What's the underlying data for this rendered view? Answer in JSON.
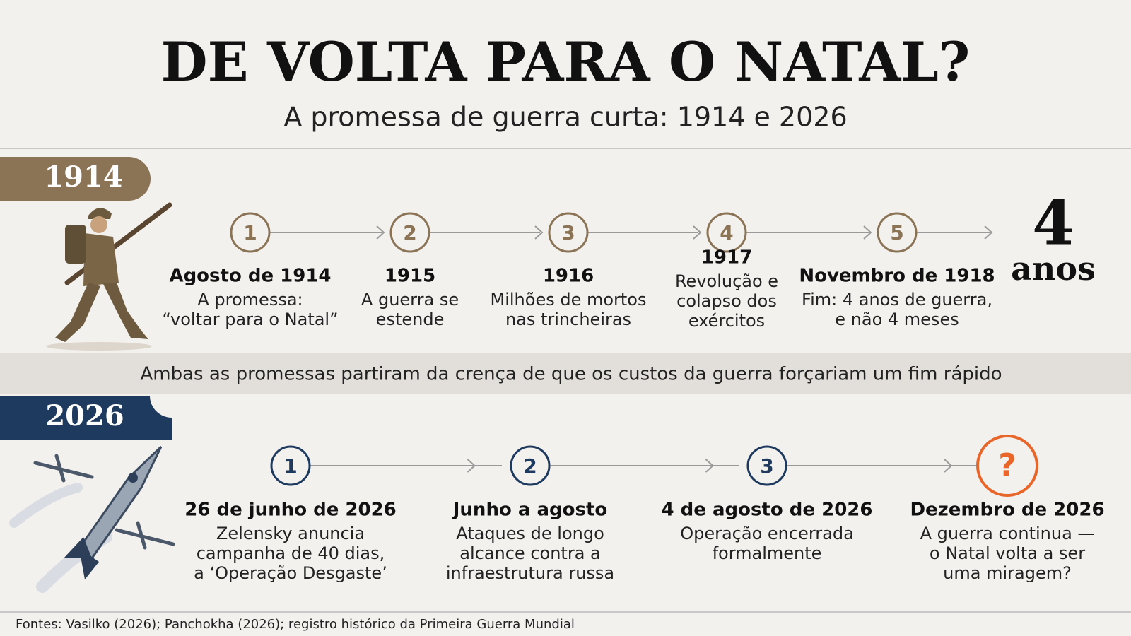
{
  "header": {
    "title": "DE VOLTA PARA O NATAL?",
    "subtitle": "A promessa de guerra curta: 1914 e 2026"
  },
  "timeline_1914": {
    "label": "1914",
    "steps": [
      {
        "number": "1",
        "title": "Agosto de 1914",
        "lines": [
          "A promessa:",
          "“voltar para o Natal”"
        ]
      },
      {
        "number": "2",
        "title": "1915",
        "lines": [
          "A guerra se",
          "estende"
        ]
      },
      {
        "number": "3",
        "title": "1916",
        "lines": [
          "Milhões de mortos",
          "nas trincheiras"
        ]
      },
      {
        "number": "4",
        "title": "1917",
        "lines": [
          "Revolução e",
          "colapso dos",
          "exércitos"
        ]
      },
      {
        "number": "5",
        "title": "Novembro de 1918",
        "lines": [
          "Fim: 4 anos de guerra,",
          "e não 4 meses"
        ]
      }
    ],
    "result": {
      "number": "4",
      "unit": "anos"
    }
  },
  "bridge": "Ambas as promessas partiram da crença de que os custos da guerra forçariam um fim rápido",
  "timeline_2026": {
    "label": "2026",
    "steps": [
      {
        "number": "1",
        "title": "26 de junho de 2026",
        "lines": [
          "Zelensky anuncia",
          "campanha de 40 dias,",
          "a ‘Operação Desgaste’"
        ]
      },
      {
        "number": "2",
        "title": "Junho a agosto",
        "lines": [
          "Ataques de longo",
          "alcance contra a",
          "infraestrutura russa"
        ]
      },
      {
        "number": "3",
        "title": "4 de agosto de 2026",
        "lines": [
          "Operação encerrada",
          "formalmente"
        ]
      },
      {
        "number": "?",
        "title": "Dezembro de 2026",
        "lines": [
          "A guerra continua —",
          "o Natal volta a ser",
          "uma miragem?"
        ]
      }
    ]
  },
  "footer": "Fontes: Vasilko (2026); Panchokha (2026); registro histórico da Primeira Guerra Mundial"
}
